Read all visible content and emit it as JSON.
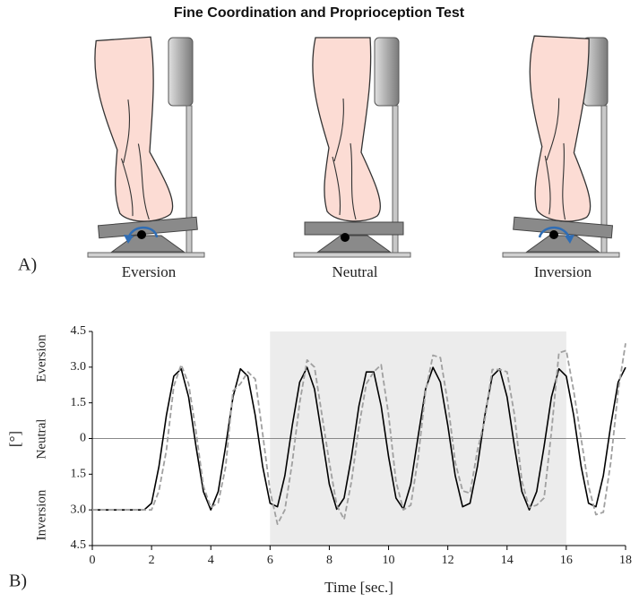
{
  "title": "Fine Coordination and Proprioception Test",
  "panel_a": {
    "label": "A)",
    "positions": [
      "Eversion",
      "Neutral",
      "Inversion"
    ]
  },
  "chart_data": {
    "type": "line",
    "panel_label": "B)",
    "xlabel": "Time [sec.]",
    "ylabel": "[°]",
    "y_region_labels": [
      "Eversion",
      "Neutral",
      "Inversion"
    ],
    "xlim": [
      0,
      18
    ],
    "xticks": [
      0,
      2,
      4,
      6,
      8,
      10,
      12,
      14,
      16,
      18
    ],
    "ylim": [
      -4.5,
      4.5
    ],
    "yticks": [
      4.5,
      {
        "value": 3,
        "label": "3.0"
      },
      1.5,
      0,
      {
        "value": -1.5,
        "label": "1.5"
      },
      {
        "value": -3,
        "label": "3.0"
      },
      {
        "value": -4.5,
        "label": "4.5"
      }
    ],
    "shaded_region": [
      6,
      16
    ],
    "shade_color": "#ececec",
    "zero_line": true,
    "x": [
      0,
      0.25,
      0.5,
      0.75,
      1,
      1.25,
      1.5,
      1.75,
      2,
      2.25,
      2.5,
      2.75,
      3,
      3.25,
      3.5,
      3.75,
      4,
      4.25,
      4.5,
      4.75,
      5,
      5.25,
      5.5,
      5.75,
      6,
      6.25,
      6.5,
      6.75,
      7,
      7.25,
      7.5,
      7.75,
      8,
      8.25,
      8.5,
      8.75,
      9,
      9.25,
      9.5,
      9.75,
      10,
      10.25,
      10.5,
      10.75,
      11,
      11.25,
      11.5,
      11.75,
      12,
      12.25,
      12.5,
      12.75,
      13,
      13.25,
      13.5,
      13.75,
      14,
      14.25,
      14.5,
      14.75,
      15,
      15.25,
      15.5,
      15.75,
      16,
      16.25,
      16.5,
      16.75,
      17,
      17.25,
      17.5,
      17.75,
      18
    ],
    "series": [
      {
        "color": "#000000",
        "dashed": false,
        "values": [
          -3,
          -3,
          -3,
          -3,
          -3,
          -3,
          -3,
          -3,
          -2.72,
          -1.17,
          0.97,
          2.62,
          2.93,
          1.75,
          -0.33,
          -2.23,
          -3,
          -2.23,
          -0.33,
          1.75,
          2.93,
          2.62,
          0.97,
          -1.17,
          -2.72,
          -2.87,
          -1.56,
          0.55,
          2.37,
          2.99,
          2.08,
          0.11,
          -1.92,
          -2.97,
          -2.5,
          -0.76,
          1.37,
          2.8,
          2.8,
          1.37,
          -0.76,
          -2.5,
          -2.97,
          -1.92,
          0.11,
          2.08,
          2.99,
          2.37,
          0.55,
          -1.56,
          -2.87,
          -2.72,
          -1.17,
          0.97,
          2.62,
          2.93,
          1.75,
          -0.33,
          -2.23,
          -3,
          -2.23,
          -0.33,
          1.75,
          2.93,
          2.62,
          0.97,
          -1.17,
          -2.72,
          -2.87,
          -1.56,
          0.55,
          2.37,
          2.99
        ]
      },
      {
        "color": "#a0a0a0",
        "dashed": true,
        "values": [
          -3,
          -3,
          -3,
          -3,
          -3,
          -3,
          -3,
          -3,
          -3,
          -2.2,
          -0.5,
          2.2,
          3.1,
          2.3,
          0.3,
          -2,
          -2.9,
          -2.7,
          -1.2,
          2,
          2.3,
          2.8,
          2.5,
          0.2,
          -2.2,
          -3.6,
          -3,
          -1,
          1.5,
          3.3,
          3,
          1,
          -1,
          -2.8,
          -3.4,
          -1.8,
          0.5,
          2.3,
          2.8,
          3.1,
          1,
          -1.8,
          -3,
          -2.8,
          -0.8,
          2,
          3.5,
          3.4,
          1.5,
          -1,
          -2.2,
          -2.3,
          -0.5,
          0.8,
          2.9,
          2.9,
          2.8,
          1,
          -1.8,
          -2.9,
          -2.8,
          -2.5,
          0.3,
          3.6,
          3.7,
          2,
          0,
          -2,
          -3.2,
          -3.1,
          -1,
          2,
          4
        ]
      }
    ]
  }
}
